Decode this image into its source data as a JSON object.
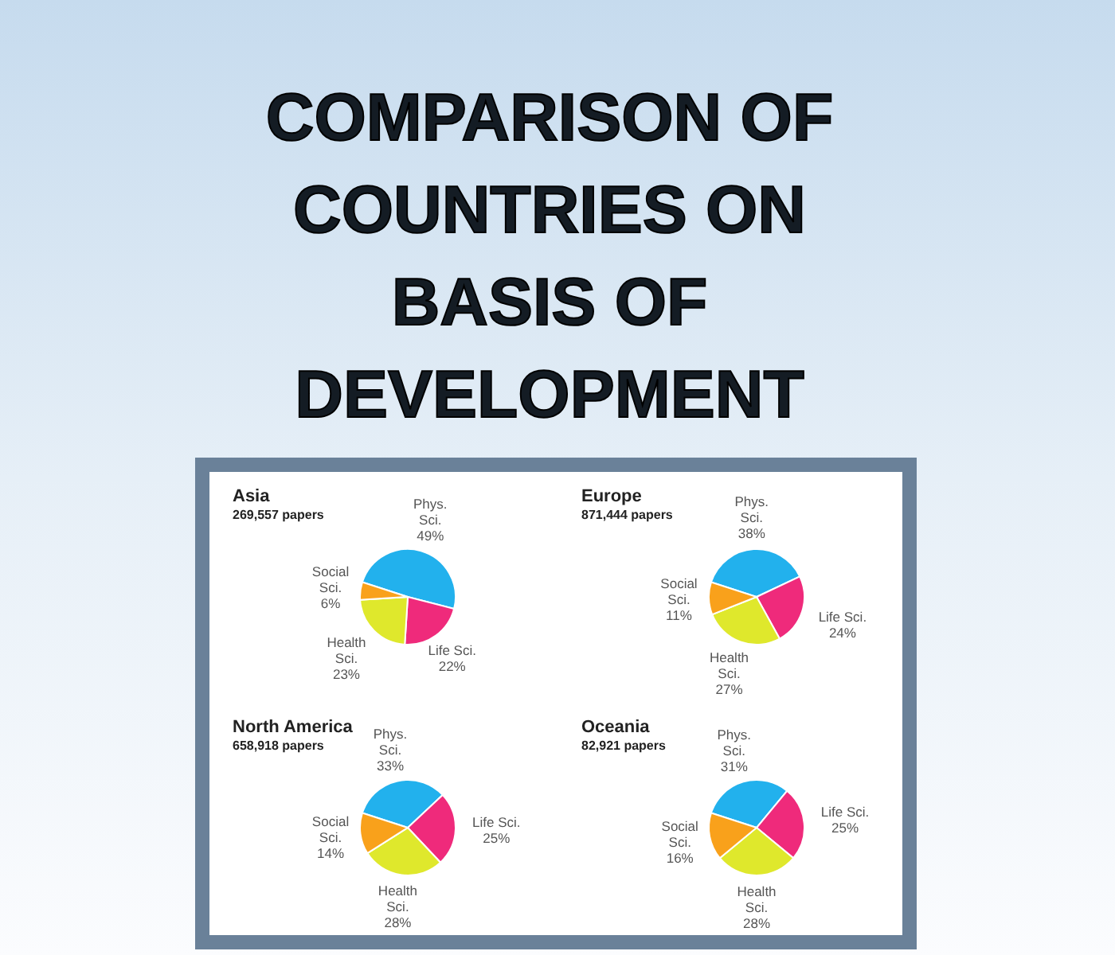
{
  "chart_data": [
    {
      "type": "other",
      "title": "COMPARISON OF COUNTRIES ON BASIS OF DEVELOPMENT"
    },
    {
      "type": "pie",
      "title": "Asia",
      "subtitle": "269,557 papers",
      "categories": [
        "Phys. Sci.",
        "Life Sci.",
        "Health Sci.",
        "Social Sci."
      ],
      "values": [
        49,
        22,
        23,
        6
      ],
      "value_labels": [
        "49%",
        "22%",
        "23%",
        "6%"
      ],
      "colors": [
        "#22b1ed",
        "#ef2a7b",
        "#dfe82c",
        "#f9a11b"
      ]
    },
    {
      "type": "pie",
      "title": "Europe",
      "subtitle": "871,444 papers",
      "categories": [
        "Phys. Sci.",
        "Life Sci.",
        "Health Sci.",
        "Social Sci."
      ],
      "values": [
        38,
        24,
        27,
        11
      ],
      "value_labels": [
        "38%",
        "24%",
        "27%",
        "11%"
      ],
      "colors": [
        "#22b1ed",
        "#ef2a7b",
        "#dfe82c",
        "#f9a11b"
      ]
    },
    {
      "type": "pie",
      "title": "North America",
      "subtitle": "658,918 papers",
      "categories": [
        "Phys. Sci.",
        "Life Sci.",
        "Health Sci.",
        "Social Sci."
      ],
      "values": [
        33,
        25,
        28,
        14
      ],
      "value_labels": [
        "33%",
        "25%",
        "28%",
        "14%"
      ],
      "colors": [
        "#22b1ed",
        "#ef2a7b",
        "#dfe82c",
        "#f9a11b"
      ]
    },
    {
      "type": "pie",
      "title": "Oceania",
      "subtitle": "82,921 papers",
      "categories": [
        "Phys. Sci.",
        "Life Sci.",
        "Health Sci.",
        "Social Sci."
      ],
      "values": [
        31,
        25,
        28,
        16
      ],
      "value_labels": [
        "31%",
        "25%",
        "28%",
        "16%"
      ],
      "colors": [
        "#22b1ed",
        "#ef2a7b",
        "#dfe82c",
        "#f9a11b"
      ]
    }
  ]
}
